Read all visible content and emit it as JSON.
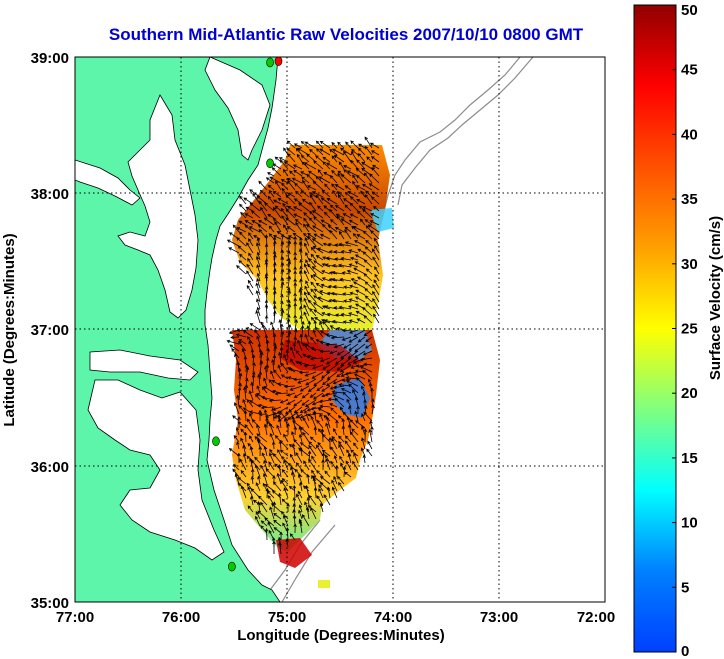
{
  "title": "Southern Mid-Atlantic Raw Velocities 2007/10/10 0800 GMT",
  "x_axis": {
    "label": "Longitude (Degrees:Minutes)",
    "ticks": [
      "77:00",
      "76:00",
      "75:00",
      "74:00",
      "73:00",
      "72:00"
    ]
  },
  "y_axis": {
    "label": "Latitude (Degrees:Minutes)",
    "ticks": [
      "39:00",
      "38:00",
      "37:00",
      "36:00",
      "35:00"
    ]
  },
  "colorbar": {
    "label": "Surface Velocity (cm/s)",
    "ticks": [
      "50",
      "45",
      "40",
      "35",
      "30",
      "25",
      "20",
      "15",
      "10",
      "5",
      "0"
    ],
    "min": 0,
    "max": 50,
    "colormap": "jet"
  },
  "map": {
    "lon_range": [
      -77,
      -72
    ],
    "lat_range": [
      35,
      39
    ],
    "grid": "dotted",
    "land_color": "#5cf5aa",
    "coastline_color": "#000000",
    "bathymetry_color": "#888888"
  },
  "stations": [
    {
      "lon": -75.08,
      "lat": 38.97,
      "color": "#ff0000"
    },
    {
      "lon": -75.16,
      "lat": 38.96,
      "color": "#00cc00"
    },
    {
      "lon": -75.16,
      "lat": 38.22,
      "color": "#00cc00"
    },
    {
      "lon": -75.67,
      "lat": 36.18,
      "color": "#00cc00"
    },
    {
      "lon": -75.52,
      "lat": 35.26,
      "color": "#00cc00"
    }
  ]
}
